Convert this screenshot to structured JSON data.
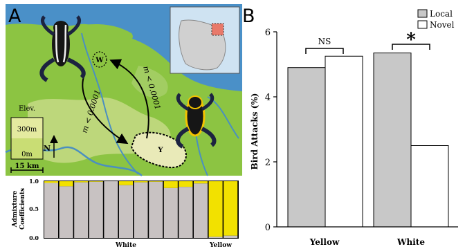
{
  "panels": {
    "a": "A",
    "b": "B"
  },
  "map": {
    "site_w": "W",
    "site_y": "Y",
    "m_upper": "m < 0.0001",
    "m_lower": "m < 0.0001",
    "elev_title": "Elev.",
    "elev_high": "300m",
    "elev_low": "0m",
    "north": "N",
    "scale": "15 km",
    "colors": {
      "sea": "#4a90c8",
      "land": "#8cc442",
      "highland": "#d9e7a0",
      "river": "#4a8fc0"
    }
  },
  "admixture": {
    "ylabel_1": "Admixture",
    "ylabel_2": "Coefficients",
    "yticks": [
      "1.0",
      "0.5",
      "0.0"
    ],
    "group_white": "White",
    "group_yellow": "Yellow",
    "colors": {
      "white_cluster": "#c8c2c2",
      "yellow_cluster": "#f2e100"
    },
    "individuals": [
      {
        "group": "White",
        "white": 0.97
      },
      {
        "group": "White",
        "white": 0.91
      },
      {
        "group": "White",
        "white": 0.98
      },
      {
        "group": "White",
        "white": 0.99
      },
      {
        "group": "White",
        "white": 1.0
      },
      {
        "group": "White",
        "white": 0.93
      },
      {
        "group": "White",
        "white": 0.98
      },
      {
        "group": "White",
        "white": 0.99
      },
      {
        "group": "White",
        "white": 0.88
      },
      {
        "group": "White",
        "white": 0.9
      },
      {
        "group": "White",
        "white": 0.96
      },
      {
        "group": "Yellow",
        "white": 0.02
      },
      {
        "group": "Yellow",
        "white": 0.04
      }
    ]
  },
  "chart_data": {
    "type": "bar",
    "ylabel": "Bird Attacks (%)",
    "ylim": [
      0,
      6
    ],
    "yticks": [
      0,
      2,
      4,
      6
    ],
    "categories": [
      "Yellow",
      "White"
    ],
    "series": [
      {
        "name": "Local",
        "color": "#c8c8c8",
        "values": [
          4.9,
          5.35
        ]
      },
      {
        "name": "Novel",
        "color": "#ffffff",
        "values": [
          5.25,
          2.5
        ]
      }
    ],
    "annotations": [
      "NS",
      "*"
    ],
    "legend": "top-right"
  }
}
